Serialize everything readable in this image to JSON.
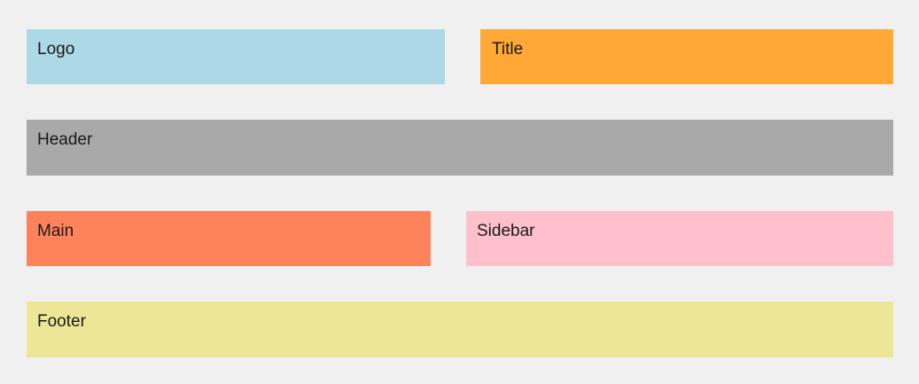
{
  "boxes": {
    "logo": {
      "label": "Logo",
      "color": "#add8e6"
    },
    "title": {
      "label": "Title",
      "color": "#ffa836"
    },
    "header": {
      "label": "Header",
      "color": "#a9a9a9"
    },
    "main": {
      "label": "Main",
      "color": "#ff835a"
    },
    "sidebar": {
      "label": "Sidebar",
      "color": "#ffc0cb"
    },
    "footer": {
      "label": "Footer",
      "color": "#eee697"
    }
  }
}
